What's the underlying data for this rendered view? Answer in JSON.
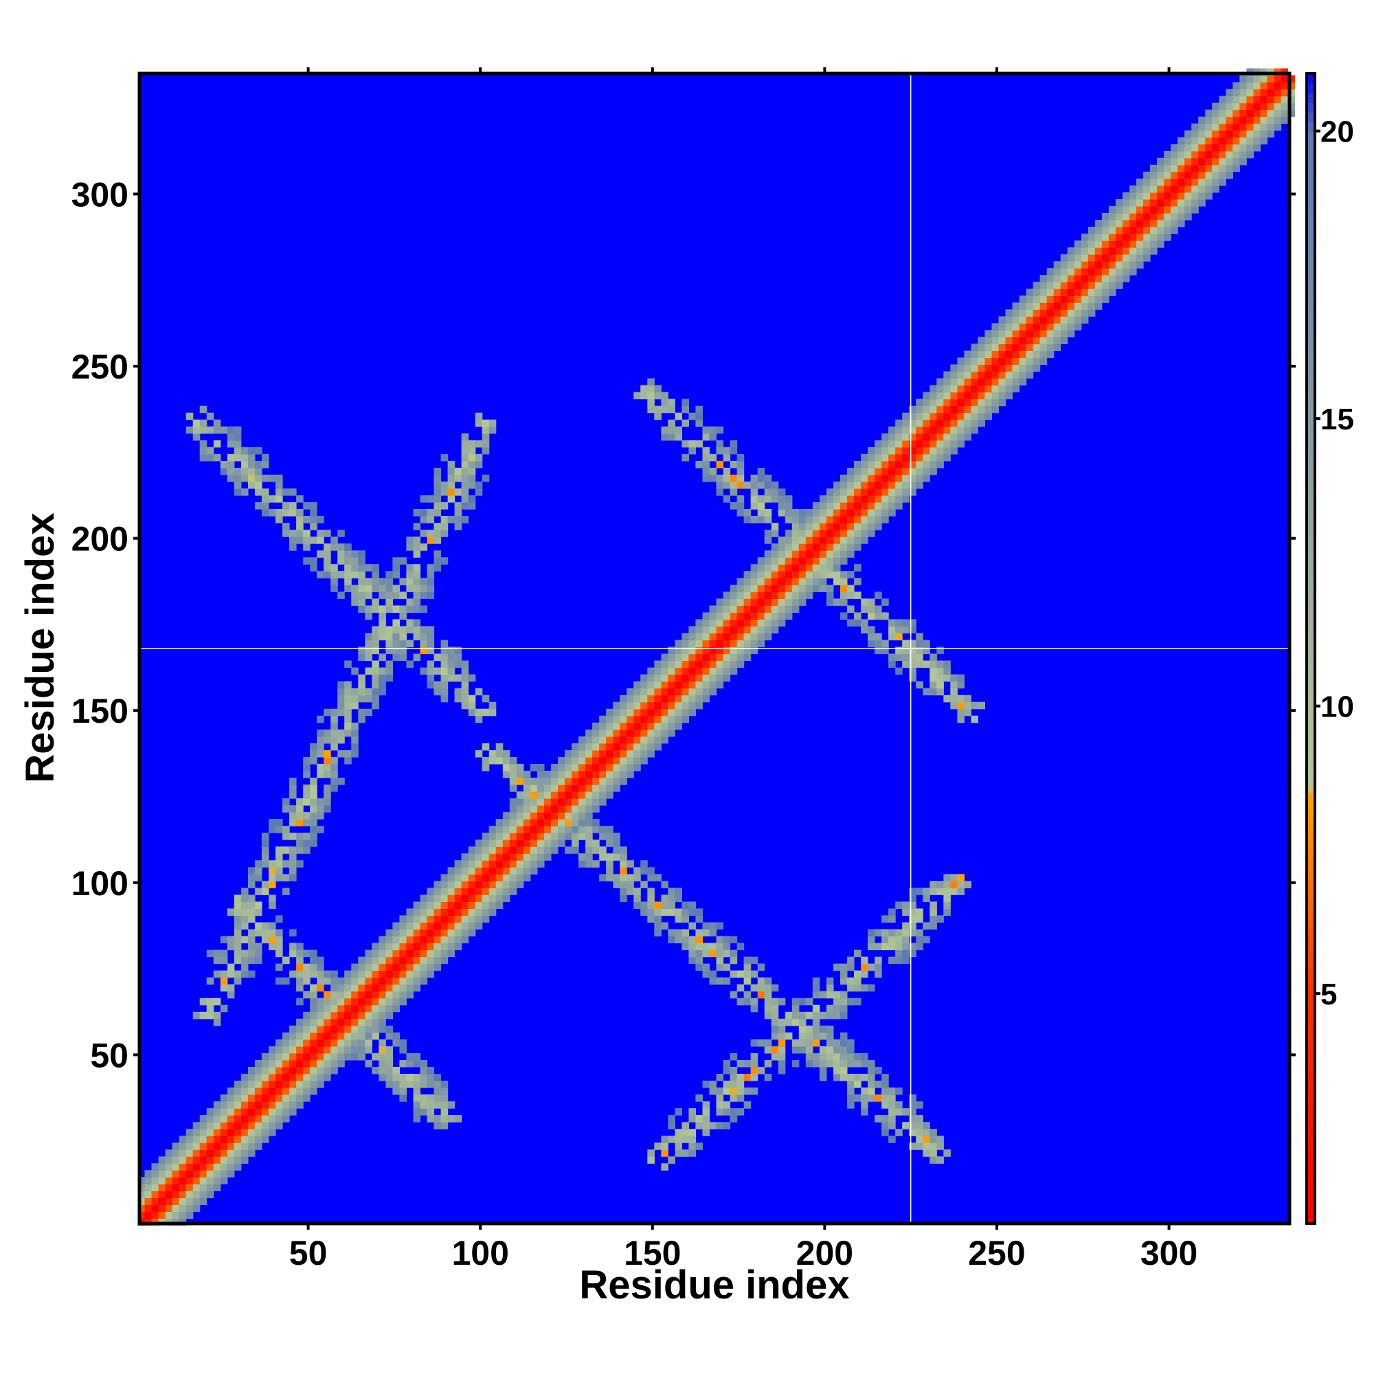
{
  "chart_data": {
    "type": "heatmap",
    "title": "",
    "xlabel": "Residue index",
    "ylabel": "Residue index",
    "xlim": [
      1,
      335
    ],
    "ylim": [
      1,
      335
    ],
    "x_ticks": [
      50,
      100,
      150,
      200,
      250,
      300
    ],
    "y_ticks": [
      50,
      100,
      150,
      200,
      250,
      300
    ],
    "colorbar": {
      "range": [
        1,
        21
      ],
      "ticks": [
        5,
        10,
        15,
        20
      ],
      "colormap": [
        {
          "value": 1,
          "color": "#ff0000"
        },
        {
          "value": 5,
          "color": "#ff3000"
        },
        {
          "value": 8.5,
          "color": "#ffa500"
        },
        {
          "value": 8.6,
          "color": "#b4c896"
        },
        {
          "value": 14,
          "color": "#8ca0a0"
        },
        {
          "value": 20,
          "color": "#5a78b4"
        },
        {
          "value": 21,
          "color": "#0000ff"
        }
      ]
    },
    "background_value": 21,
    "background_color": "#0000ff",
    "reference_lines": {
      "vertical_x": 225,
      "horizontal_y": 168
    },
    "contact_bands": [
      {
        "from": [
          1,
          1
        ],
        "to": [
          335,
          335
        ],
        "kind": "diagonal"
      },
      {
        "from": [
          16,
          236
        ],
        "to": [
          103,
          148
        ],
        "kind": "anti-diagonal"
      },
      {
        "from": [
          28,
          95
        ],
        "to": [
          92,
          30
        ],
        "kind": "anti-diagonal"
      },
      {
        "from": [
          147,
          244
        ],
        "to": [
          244,
          148
        ],
        "kind": "anti-diagonal"
      },
      {
        "from": [
          100,
          140
        ],
        "to": [
          235,
          20
        ],
        "kind": "anti-diagonal"
      },
      {
        "from": [
          20,
          60
        ],
        "to": [
          102,
          235
        ],
        "kind": "parallel"
      },
      {
        "from": [
          150,
          18
        ],
        "to": [
          240,
          102
        ],
        "kind": "parallel"
      }
    ]
  }
}
